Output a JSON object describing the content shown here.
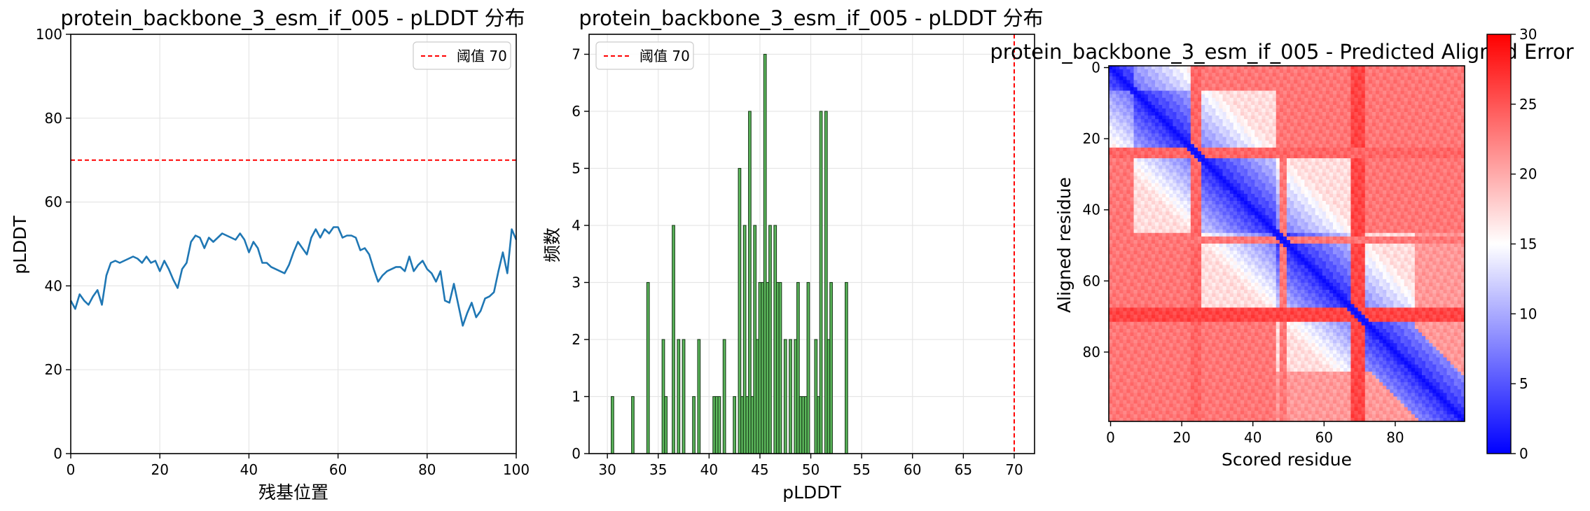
{
  "chart_data": [
    {
      "type": "line",
      "title": "protein_backbone_3_esm_if_005 - pLDDT 分布",
      "xlabel": "残基位置",
      "ylabel": "pLDDT",
      "xlim": [
        0,
        100
      ],
      "ylim": [
        0,
        100
      ],
      "xticks": [
        0,
        20,
        40,
        60,
        80,
        100
      ],
      "yticks": [
        0,
        20,
        40,
        60,
        80,
        100
      ],
      "grid": true,
      "legend_position": "top-right",
      "legend": [
        "阈值 70"
      ],
      "threshold": 70,
      "line_color": "#1f77b4",
      "threshold_color": "#ff0000",
      "series": [
        {
          "x": [
            0,
            1,
            2,
            3,
            4,
            5,
            6,
            7,
            8,
            9,
            10,
            11,
            12,
            13,
            14,
            15,
            16,
            17,
            18,
            19,
            20,
            21,
            22,
            23,
            24,
            25,
            26,
            27,
            28,
            29,
            30,
            31,
            32,
            33,
            34,
            35,
            36,
            37,
            38,
            39,
            40,
            41,
            42,
            43,
            44,
            45,
            46,
            47,
            48,
            49,
            50,
            51,
            52,
            53,
            54,
            55,
            56,
            57,
            58,
            59,
            60,
            61,
            62,
            63,
            64,
            65,
            66,
            67,
            68,
            69,
            70,
            71,
            72,
            73,
            74,
            75,
            76,
            77,
            78,
            79,
            80,
            81,
            82,
            83,
            84,
            85,
            86,
            87,
            88,
            89,
            90,
            91,
            92,
            93,
            94,
            95,
            96,
            97,
            98,
            99,
            100
          ],
          "y": [
            36.5,
            34.5,
            38,
            36.5,
            35.5,
            37.5,
            39,
            35.5,
            42.5,
            45.5,
            46,
            45.5,
            46,
            46.5,
            47,
            46.5,
            45.5,
            47,
            45.5,
            46,
            43.5,
            46,
            44,
            41.5,
            39.5,
            44,
            45.5,
            50.5,
            52,
            51.5,
            49,
            51.5,
            50.5,
            51.5,
            52.5,
            52,
            51.5,
            51,
            52.5,
            51,
            48,
            50.5,
            49,
            45.5,
            45.5,
            44.5,
            44,
            43.5,
            43,
            45,
            48,
            50.5,
            49,
            47.5,
            51.5,
            53.5,
            51.5,
            53.5,
            52.5,
            54,
            54,
            51.5,
            52,
            52,
            51.5,
            48.5,
            49,
            47.5,
            44,
            41,
            42.5,
            43.5,
            44,
            44.5,
            44.5,
            43.5,
            47,
            43.5,
            45,
            46,
            44,
            43,
            41,
            43.5,
            36.5,
            36,
            40.5,
            35.5,
            30.5,
            33.5,
            36,
            32.5,
            34,
            37,
            37.5,
            38.5,
            43.5,
            48,
            43,
            53.5,
            51
          ]
        }
      ]
    },
    {
      "type": "bar",
      "title": "protein_backbone_3_esm_if_005 - pLDDT 分布",
      "xlabel": "pLDDT",
      "ylabel": "频数",
      "xlim": [
        28.2,
        72
      ],
      "ylim": [
        0,
        7.35
      ],
      "xticks": [
        30,
        35,
        40,
        45,
        50,
        55,
        60,
        65,
        70
      ],
      "yticks": [
        0,
        1,
        2,
        3,
        4,
        5,
        6,
        7
      ],
      "grid": true,
      "legend_position": "top-left",
      "legend": [
        "阈值 70"
      ],
      "threshold": 70,
      "bar_color": "#5cb85c",
      "bar_edge_color": "#1a3d1a",
      "threshold_color": "#ff0000",
      "bin_width": 0.25,
      "bins": [
        {
          "x": 30.5,
          "count": 1
        },
        {
          "x": 32.5,
          "count": 1
        },
        {
          "x": 34.0,
          "count": 3
        },
        {
          "x": 35.5,
          "count": 2
        },
        {
          "x": 35.75,
          "count": 1
        },
        {
          "x": 36.5,
          "count": 4
        },
        {
          "x": 37.0,
          "count": 2
        },
        {
          "x": 37.5,
          "count": 2
        },
        {
          "x": 38.5,
          "count": 1
        },
        {
          "x": 39.0,
          "count": 2
        },
        {
          "x": 40.5,
          "count": 1
        },
        {
          "x": 40.75,
          "count": 1
        },
        {
          "x": 41.0,
          "count": 1
        },
        {
          "x": 41.5,
          "count": 2
        },
        {
          "x": 42.5,
          "count": 1
        },
        {
          "x": 43.0,
          "count": 5
        },
        {
          "x": 43.25,
          "count": 1
        },
        {
          "x": 43.5,
          "count": 4
        },
        {
          "x": 43.75,
          "count": 1
        },
        {
          "x": 44.0,
          "count": 6
        },
        {
          "x": 44.25,
          "count": 1
        },
        {
          "x": 44.5,
          "count": 4
        },
        {
          "x": 44.75,
          "count": 2
        },
        {
          "x": 45.0,
          "count": 3
        },
        {
          "x": 45.25,
          "count": 3
        },
        {
          "x": 45.5,
          "count": 7
        },
        {
          "x": 45.75,
          "count": 3
        },
        {
          "x": 46.0,
          "count": 4
        },
        {
          "x": 46.5,
          "count": 4
        },
        {
          "x": 46.75,
          "count": 3
        },
        {
          "x": 47.0,
          "count": 3
        },
        {
          "x": 47.5,
          "count": 2
        },
        {
          "x": 48.0,
          "count": 2
        },
        {
          "x": 48.5,
          "count": 2
        },
        {
          "x": 48.75,
          "count": 3
        },
        {
          "x": 49.0,
          "count": 1
        },
        {
          "x": 49.25,
          "count": 1
        },
        {
          "x": 49.5,
          "count": 1
        },
        {
          "x": 49.75,
          "count": 3
        },
        {
          "x": 50.5,
          "count": 2
        },
        {
          "x": 50.75,
          "count": 1
        },
        {
          "x": 51.0,
          "count": 6
        },
        {
          "x": 51.5,
          "count": 6
        },
        {
          "x": 51.75,
          "count": 2
        },
        {
          "x": 52.0,
          "count": 3
        },
        {
          "x": 53.5,
          "count": 3
        }
      ]
    },
    {
      "type": "heatmap",
      "title": "protein_backbone_3_esm_if_005 - Predicted Aligned Error",
      "xlabel": "Scored residue",
      "ylabel": "Aligned residue",
      "xlim": [
        0,
        100
      ],
      "ylim": [
        0,
        100
      ],
      "xticks": [
        0,
        20,
        40,
        60,
        80
      ],
      "yticks": [
        0,
        20,
        40,
        60,
        80
      ],
      "colormap": "bwr",
      "colorbar_range": [
        0,
        30
      ],
      "colorbar_ticks": [
        0,
        5,
        10,
        15,
        20,
        25,
        30
      ],
      "n_residues": 100,
      "blocks": [
        {
          "start": 0,
          "end": 7,
          "pae": 6
        },
        {
          "start": 7,
          "end": 23,
          "pae": 9
        },
        {
          "start": 23,
          "end": 47,
          "pae": 11
        },
        {
          "start": 47,
          "end": 68,
          "pae": 12
        },
        {
          "start": 68,
          "end": 100,
          "pae": 10
        }
      ],
      "hot_rows": [
        {
          "start": 23,
          "end": 26,
          "pae": 24
        },
        {
          "start": 48,
          "end": 50,
          "pae": 23
        },
        {
          "start": 68,
          "end": 72,
          "pae": 26
        }
      ],
      "high_pae": 23
    }
  ]
}
